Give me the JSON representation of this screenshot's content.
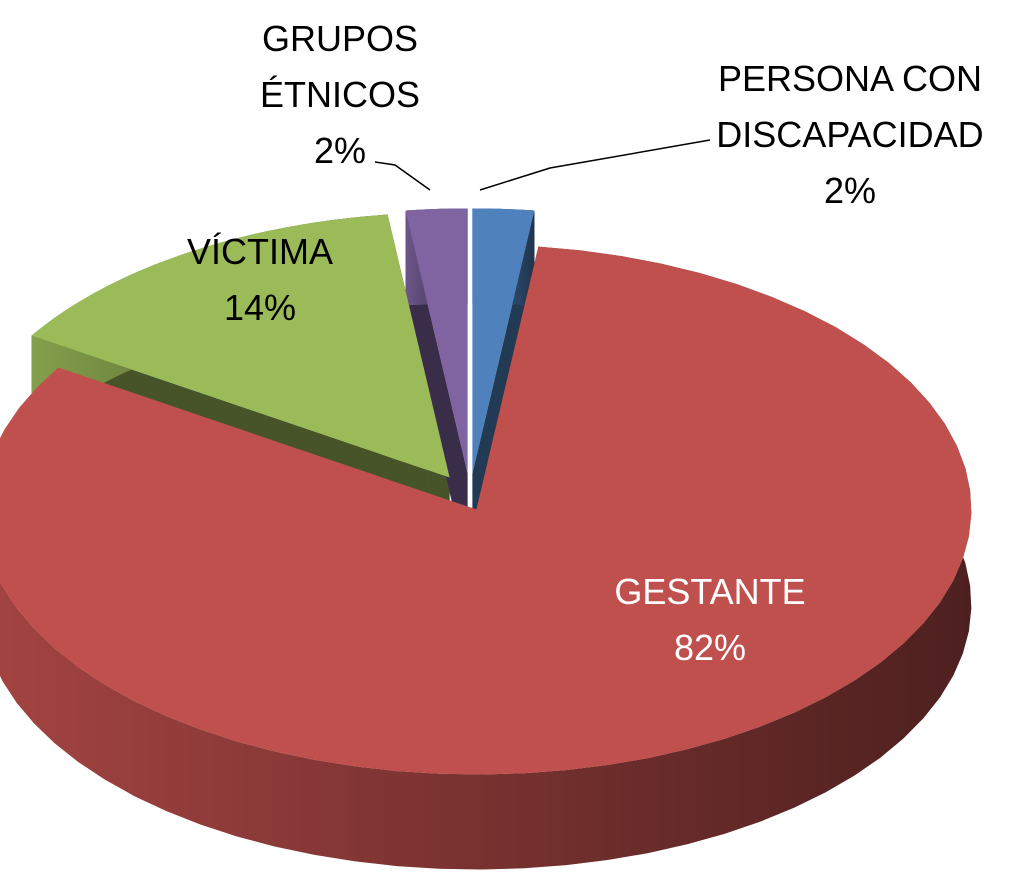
{
  "chart_data": {
    "type": "pie",
    "categories": [
      "PERSONA CON DISCAPACIDAD",
      "GESTANTE",
      "VÍCTIMA",
      "GRUPOS ÉTNICOS"
    ],
    "values": [
      2,
      82,
      14,
      2
    ],
    "value_labels": [
      "2%",
      "82%",
      "14%",
      "2%"
    ],
    "colors": [
      "#4f81bd",
      "#c0504d",
      "#9bbb59",
      "#8064a2"
    ]
  }
}
